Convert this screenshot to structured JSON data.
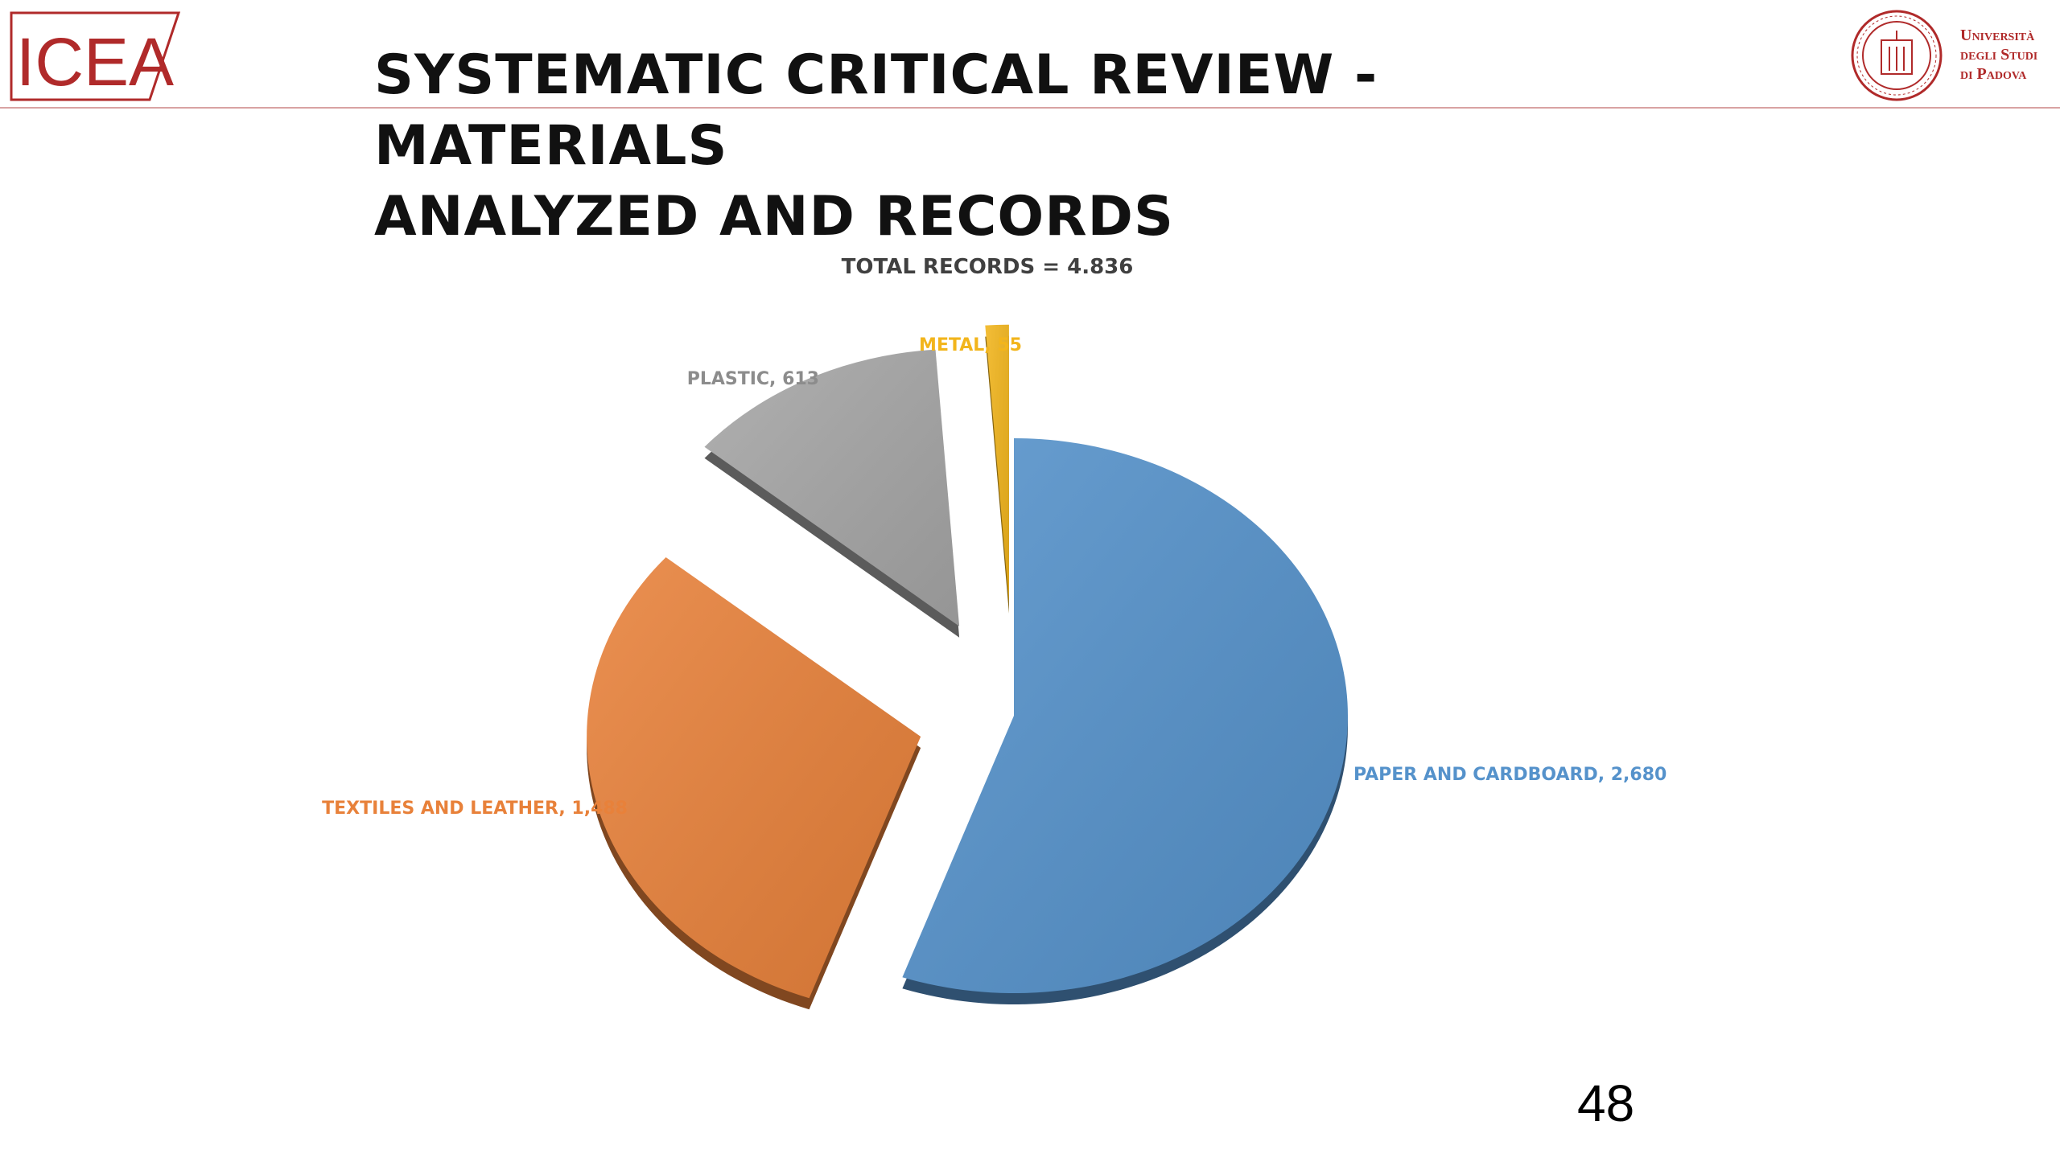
{
  "header": {
    "logo_left_text": "ICEA",
    "title_line1": "SYSTEMATIC CRITICAL REVIEW - MATERIALS",
    "title_line2": "ANALYZED AND RECORDS",
    "university_line1": "Università",
    "university_line2": "degli Studi",
    "university_line3": "di Padova"
  },
  "colors": {
    "brand_red": "#b02a2a",
    "paper": "#5592cb",
    "textiles": "#e8813a",
    "plastic": "#a6a6a6",
    "metal": "#f2b51c"
  },
  "chart_data": {
    "type": "pie",
    "title": "TOTAL RECORDS = 4.836",
    "exploded": true,
    "style": "3d",
    "slices": [
      {
        "label": "PAPER AND CARDBOARD",
        "value": 2680,
        "value_label": "2,680",
        "color": "#5592cb"
      },
      {
        "label": "TEXTILES AND LEATHER",
        "value": 1488,
        "value_label": "1,488",
        "color": "#e8813a"
      },
      {
        "label": "PLASTIC",
        "value": 613,
        "value_label": "613",
        "color": "#a6a6a6"
      },
      {
        "label": "METAL",
        "value": 55,
        "value_label": "55",
        "color": "#f2b51c"
      }
    ]
  },
  "footer": {
    "page_number": "48"
  }
}
